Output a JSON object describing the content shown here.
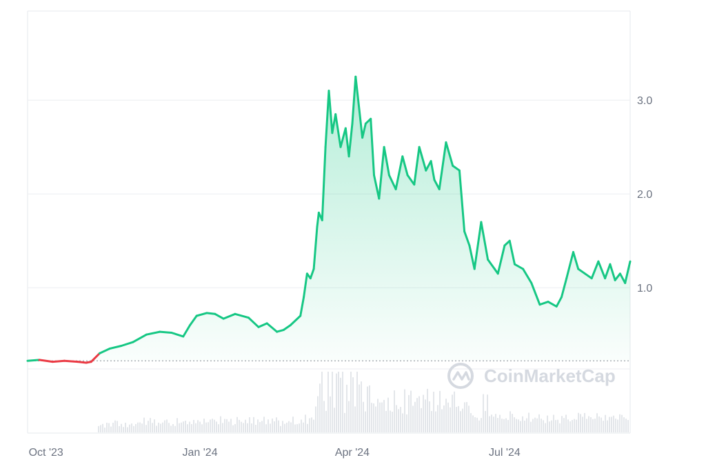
{
  "chart_data": {
    "type": "area",
    "title": "",
    "xlabel": "",
    "ylabel": "",
    "x_ticks": [
      "Oct '23",
      "Jan '24",
      "Apr '24",
      "Jul '24"
    ],
    "y_ticks": [
      "1.0",
      "2.0",
      "3.0"
    ],
    "ylim": [
      -0.55,
      3.95
    ],
    "xlim": [
      "2023-09-20",
      "2024-09-14"
    ],
    "baseline_value": 0.22,
    "grid": true,
    "colors": {
      "up": "#16c784",
      "down": "#ea3943",
      "fill": "#16c784",
      "volume": "#e3e6ea"
    },
    "series": [
      {
        "x": [
          "2023-09-20",
          "2023-09-27",
          "2023-10-05",
          "2023-10-12",
          "2023-10-20",
          "2023-10-25",
          "2023-10-28",
          "2023-11-02",
          "2023-11-08",
          "2023-11-15",
          "2023-11-22",
          "2023-11-30",
          "2023-12-08",
          "2023-12-15",
          "2023-12-22",
          "2023-12-26",
          "2023-12-30",
          "2024-01-05",
          "2024-01-10",
          "2024-01-15",
          "2024-01-22",
          "2024-01-30",
          "2024-02-05",
          "2024-02-10",
          "2024-02-16",
          "2024-02-20",
          "2024-02-24",
          "2024-03-01",
          "2024-03-03",
          "2024-03-05",
          "2024-03-07",
          "2024-03-09",
          "2024-03-11",
          "2024-03-12",
          "2024-03-14",
          "2024-03-16",
          "2024-03-18",
          "2024-03-20",
          "2024-03-22",
          "2024-03-25",
          "2024-03-28",
          "2024-03-30",
          "2024-04-01",
          "2024-04-03",
          "2024-04-07",
          "2024-04-09",
          "2024-04-12",
          "2024-04-14",
          "2024-04-17",
          "2024-04-20",
          "2024-04-23",
          "2024-04-27",
          "2024-05-01",
          "2024-05-04",
          "2024-05-08",
          "2024-05-11",
          "2024-05-15",
          "2024-05-18",
          "2024-05-20",
          "2024-05-23",
          "2024-05-27",
          "2024-05-31",
          "2024-06-04",
          "2024-06-07",
          "2024-06-10",
          "2024-06-13",
          "2024-06-17",
          "2024-06-21",
          "2024-06-25",
          "2024-06-27",
          "2024-07-01",
          "2024-07-04",
          "2024-07-07",
          "2024-07-12",
          "2024-07-17",
          "2024-07-22",
          "2024-07-27",
          "2024-08-01",
          "2024-08-04",
          "2024-08-07",
          "2024-08-11",
          "2024-08-14",
          "2024-08-18",
          "2024-08-22",
          "2024-08-26",
          "2024-08-30",
          "2024-09-02",
          "2024-09-05",
          "2024-09-08",
          "2024-09-11",
          "2024-09-14"
        ],
        "y": [
          0.22,
          0.23,
          0.21,
          0.22,
          0.21,
          0.2,
          0.21,
          0.3,
          0.35,
          0.38,
          0.42,
          0.5,
          0.53,
          0.52,
          0.48,
          0.6,
          0.7,
          0.73,
          0.72,
          0.67,
          0.72,
          0.68,
          0.58,
          0.62,
          0.53,
          0.55,
          0.6,
          0.7,
          0.9,
          1.15,
          1.1,
          1.2,
          1.65,
          1.8,
          1.72,
          2.5,
          3.1,
          2.65,
          2.85,
          2.5,
          2.7,
          2.4,
          2.75,
          3.25,
          2.6,
          2.75,
          2.8,
          2.2,
          1.95,
          2.5,
          2.2,
          2.05,
          2.4,
          2.2,
          2.1,
          2.5,
          2.25,
          2.35,
          2.15,
          2.05,
          2.55,
          2.3,
          2.25,
          1.6,
          1.45,
          1.2,
          1.7,
          1.3,
          1.2,
          1.15,
          1.45,
          1.5,
          1.25,
          1.2,
          1.05,
          0.82,
          0.85,
          0.8,
          0.9,
          1.1,
          1.38,
          1.2,
          1.15,
          1.1,
          1.28,
          1.1,
          1.25,
          1.08,
          1.15,
          1.05,
          1.28
        ]
      }
    ]
  },
  "watermark": {
    "text": "CoinMarketCap",
    "icon": "coinmarketcap-logo-icon"
  }
}
